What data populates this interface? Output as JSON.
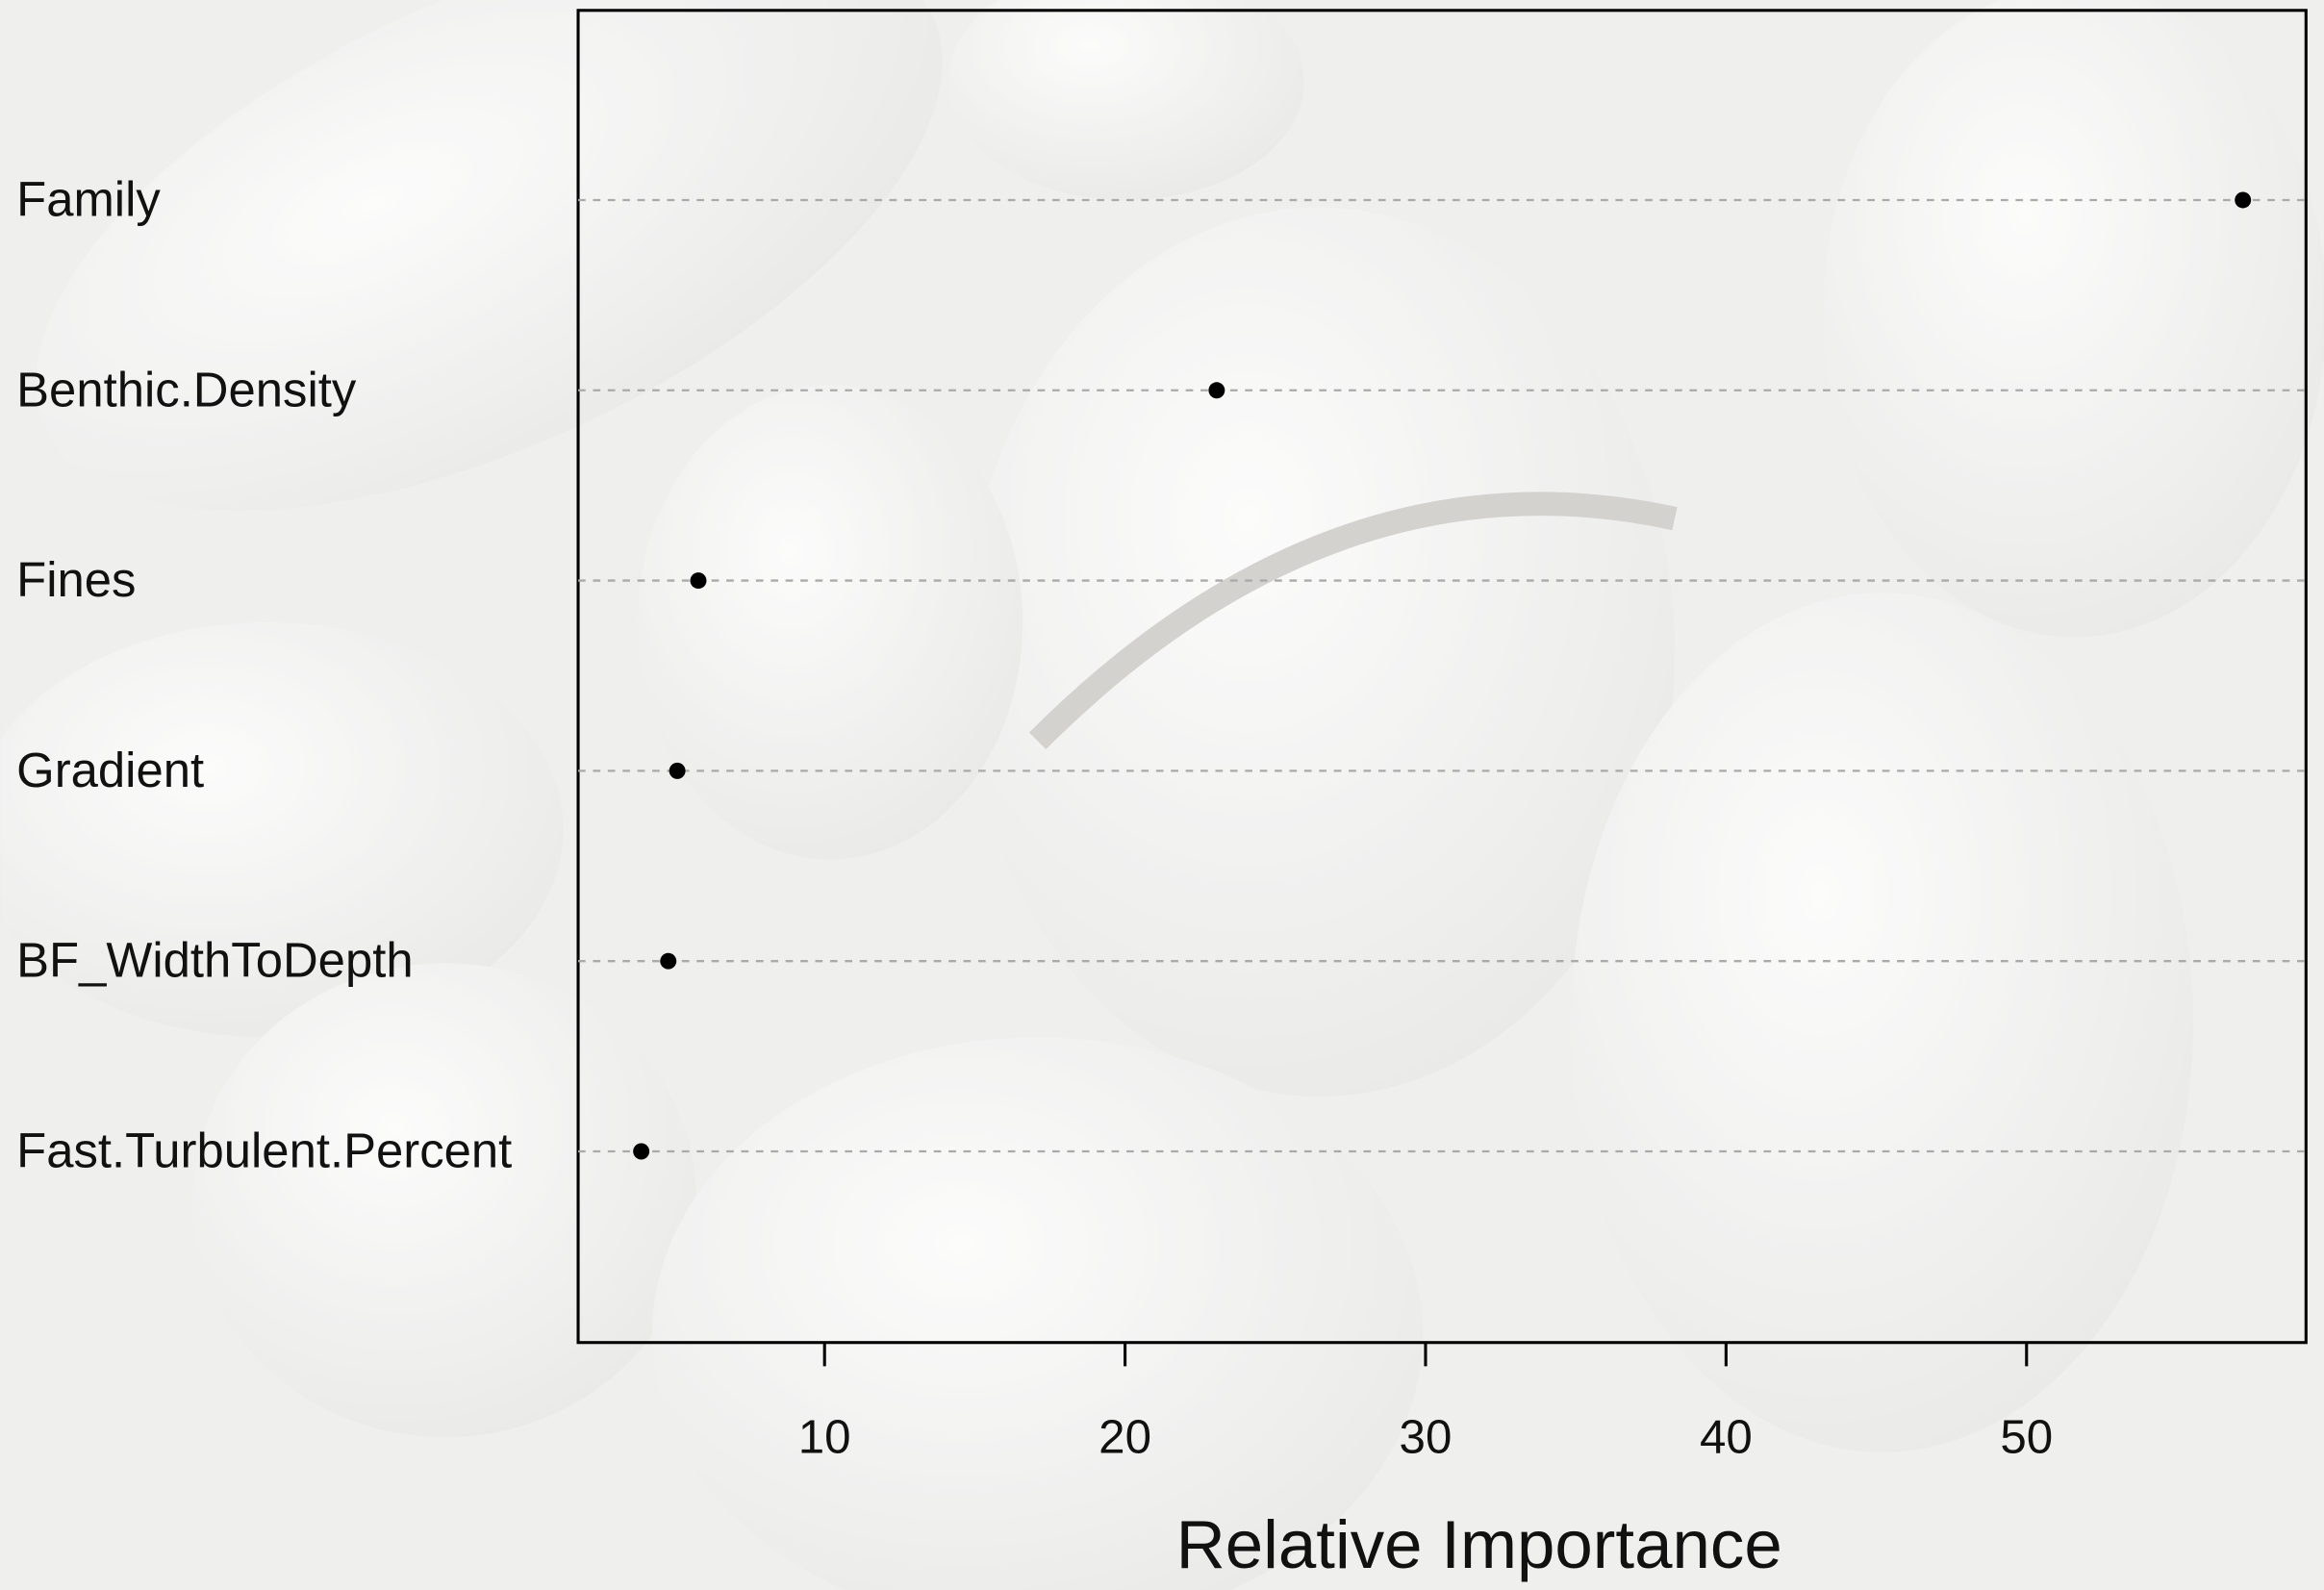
{
  "chart_data": {
    "type": "dot",
    "x_label": "Relative Importance",
    "categories": [
      "Family",
      "Benthic.Density",
      "Fines",
      "Gradient",
      "BF_WidthToDepth",
      "Fast.Turbulent.Percent"
    ],
    "values": [
      57.2,
      23.05,
      5.8,
      5.1,
      4.8,
      3.9
    ],
    "color": "#000000",
    "xlim": [
      1.8,
      59.3
    ],
    "xticks": [
      10,
      20,
      30,
      40,
      50
    ],
    "grid": true
  }
}
